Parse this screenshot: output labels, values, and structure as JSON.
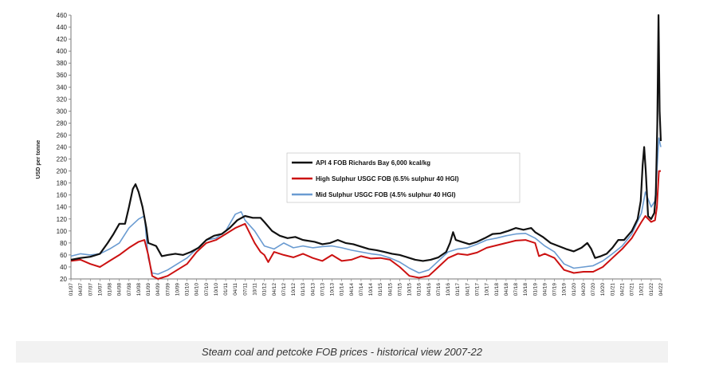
{
  "caption": "Steam coal and petcoke FOB prices - historical view 2007-22",
  "chart_data": {
    "type": "line",
    "title": "",
    "ylabel": "USD per tonne",
    "xlabel": "",
    "ylim": [
      20,
      460
    ],
    "yticks": [
      20,
      40,
      60,
      80,
      100,
      120,
      140,
      160,
      180,
      200,
      220,
      240,
      260,
      280,
      300,
      320,
      340,
      360,
      380,
      400,
      420,
      440,
      460
    ],
    "xlim": [
      2007.0,
      2022.25
    ],
    "grid": false,
    "legend_position": "center-right",
    "xtick_labels": [
      "01/07",
      "04/07",
      "07/07",
      "10/07",
      "01/08",
      "04/08",
      "07/08",
      "10/08",
      "01/09",
      "04/09",
      "07/09",
      "10/09",
      "01/10",
      "04/10",
      "07/10",
      "10/10",
      "01/11",
      "04/11",
      "07/11",
      "10/11",
      "01/12",
      "04/12",
      "07/12",
      "10/12",
      "01/13",
      "04/13",
      "07/13",
      "10/13",
      "01/14",
      "04/14",
      "07/14",
      "10/14",
      "01/15",
      "04/15",
      "07/15",
      "10/15",
      "01/16",
      "04/16",
      "07/16",
      "10/16",
      "01/17",
      "04/17",
      "07/17",
      "10/17",
      "01/18",
      "04/18",
      "07/18",
      "10/18",
      "01/19",
      "04/19",
      "07/19",
      "10/19",
      "01/20",
      "04/20",
      "07/20",
      "10/20",
      "01/21",
      "04/21",
      "07/21",
      "10/21",
      "01/22",
      "04/22"
    ],
    "series": [
      {
        "name": "API 4 FOB Richards Bay 6,000 kcal/kg",
        "color": "#111111",
        "points": [
          [
            2007.0,
            52
          ],
          [
            2007.25,
            55
          ],
          [
            2007.5,
            57
          ],
          [
            2007.75,
            62
          ],
          [
            2007.95,
            80
          ],
          [
            2008.1,
            95
          ],
          [
            2008.25,
            112
          ],
          [
            2008.4,
            112
          ],
          [
            2008.5,
            140
          ],
          [
            2008.6,
            170
          ],
          [
            2008.67,
            178
          ],
          [
            2008.75,
            165
          ],
          [
            2008.85,
            140
          ],
          [
            2008.95,
            105
          ],
          [
            2009.0,
            80
          ],
          [
            2009.2,
            75
          ],
          [
            2009.35,
            58
          ],
          [
            2009.5,
            60
          ],
          [
            2009.7,
            62
          ],
          [
            2009.9,
            60
          ],
          [
            2010.1,
            65
          ],
          [
            2010.3,
            72
          ],
          [
            2010.5,
            85
          ],
          [
            2010.7,
            92
          ],
          [
            2010.9,
            95
          ],
          [
            2011.1,
            105
          ],
          [
            2011.3,
            118
          ],
          [
            2011.5,
            125
          ],
          [
            2011.7,
            122
          ],
          [
            2011.9,
            122
          ],
          [
            2012.0,
            115
          ],
          [
            2012.2,
            100
          ],
          [
            2012.4,
            92
          ],
          [
            2012.6,
            88
          ],
          [
            2012.8,
            90
          ],
          [
            2013.0,
            85
          ],
          [
            2013.3,
            82
          ],
          [
            2013.5,
            78
          ],
          [
            2013.7,
            80
          ],
          [
            2013.9,
            85
          ],
          [
            2014.1,
            80
          ],
          [
            2014.3,
            78
          ],
          [
            2014.5,
            74
          ],
          [
            2014.7,
            70
          ],
          [
            2014.9,
            68
          ],
          [
            2015.1,
            65
          ],
          [
            2015.3,
            62
          ],
          [
            2015.5,
            60
          ],
          [
            2015.7,
            56
          ],
          [
            2015.9,
            52
          ],
          [
            2016.1,
            50
          ],
          [
            2016.3,
            52
          ],
          [
            2016.5,
            56
          ],
          [
            2016.7,
            65
          ],
          [
            2016.8,
            80
          ],
          [
            2016.88,
            98
          ],
          [
            2016.95,
            85
          ],
          [
            2017.1,
            82
          ],
          [
            2017.3,
            78
          ],
          [
            2017.5,
            82
          ],
          [
            2017.7,
            88
          ],
          [
            2017.9,
            95
          ],
          [
            2018.1,
            96
          ],
          [
            2018.3,
            100
          ],
          [
            2018.5,
            105
          ],
          [
            2018.7,
            102
          ],
          [
            2018.9,
            105
          ],
          [
            2019.0,
            98
          ],
          [
            2019.2,
            90
          ],
          [
            2019.4,
            80
          ],
          [
            2019.6,
            75
          ],
          [
            2019.8,
            70
          ],
          [
            2020.0,
            66
          ],
          [
            2020.2,
            72
          ],
          [
            2020.35,
            80
          ],
          [
            2020.45,
            70
          ],
          [
            2020.55,
            55
          ],
          [
            2020.7,
            58
          ],
          [
            2020.85,
            62
          ],
          [
            2021.0,
            72
          ],
          [
            2021.15,
            85
          ],
          [
            2021.3,
            85
          ],
          [
            2021.5,
            100
          ],
          [
            2021.65,
            120
          ],
          [
            2021.73,
            150
          ],
          [
            2021.78,
            210
          ],
          [
            2021.82,
            240
          ],
          [
            2021.86,
            200
          ],
          [
            2021.92,
            125
          ],
          [
            2022.0,
            120
          ],
          [
            2022.08,
            130
          ],
          [
            2022.12,
            160
          ],
          [
            2022.16,
            280
          ],
          [
            2022.19,
            460
          ],
          [
            2022.22,
            300
          ],
          [
            2022.25,
            250
          ]
        ]
      },
      {
        "name": "High Sulphur USGC FOB (6.5% sulphur 40 HGI)",
        "color": "#cc1111",
        "points": [
          [
            2007.0,
            50
          ],
          [
            2007.25,
            52
          ],
          [
            2007.5,
            45
          ],
          [
            2007.75,
            40
          ],
          [
            2008.0,
            50
          ],
          [
            2008.25,
            60
          ],
          [
            2008.5,
            72
          ],
          [
            2008.75,
            82
          ],
          [
            2008.9,
            85
          ],
          [
            2009.0,
            60
          ],
          [
            2009.1,
            25
          ],
          [
            2009.25,
            20
          ],
          [
            2009.5,
            25
          ],
          [
            2009.75,
            35
          ],
          [
            2010.0,
            45
          ],
          [
            2010.25,
            65
          ],
          [
            2010.5,
            80
          ],
          [
            2010.75,
            85
          ],
          [
            2011.0,
            95
          ],
          [
            2011.25,
            105
          ],
          [
            2011.5,
            112
          ],
          [
            2011.75,
            80
          ],
          [
            2011.9,
            65
          ],
          [
            2012.0,
            60
          ],
          [
            2012.1,
            48
          ],
          [
            2012.25,
            65
          ],
          [
            2012.5,
            60
          ],
          [
            2012.75,
            56
          ],
          [
            2013.0,
            62
          ],
          [
            2013.25,
            55
          ],
          [
            2013.5,
            50
          ],
          [
            2013.75,
            60
          ],
          [
            2014.0,
            50
          ],
          [
            2014.25,
            52
          ],
          [
            2014.5,
            58
          ],
          [
            2014.75,
            54
          ],
          [
            2015.0,
            55
          ],
          [
            2015.25,
            52
          ],
          [
            2015.5,
            40
          ],
          [
            2015.75,
            25
          ],
          [
            2016.0,
            22
          ],
          [
            2016.25,
            25
          ],
          [
            2016.5,
            40
          ],
          [
            2016.75,
            55
          ],
          [
            2017.0,
            62
          ],
          [
            2017.25,
            60
          ],
          [
            2017.5,
            64
          ],
          [
            2017.75,
            72
          ],
          [
            2018.0,
            76
          ],
          [
            2018.25,
            80
          ],
          [
            2018.5,
            84
          ],
          [
            2018.75,
            85
          ],
          [
            2019.0,
            80
          ],
          [
            2019.1,
            58
          ],
          [
            2019.25,
            62
          ],
          [
            2019.5,
            55
          ],
          [
            2019.75,
            35
          ],
          [
            2020.0,
            30
          ],
          [
            2020.25,
            32
          ],
          [
            2020.5,
            32
          ],
          [
            2020.75,
            40
          ],
          [
            2021.0,
            55
          ],
          [
            2021.25,
            70
          ],
          [
            2021.5,
            88
          ],
          [
            2021.75,
            115
          ],
          [
            2021.85,
            125
          ],
          [
            2022.0,
            115
          ],
          [
            2022.1,
            118
          ],
          [
            2022.15,
            140
          ],
          [
            2022.2,
            200
          ],
          [
            2022.25,
            200
          ]
        ]
      },
      {
        "name": "Mid Sulphur USGC FOB (4.5% sulphur 40 HGI)",
        "color": "#6a9bd1",
        "points": [
          [
            2007.0,
            58
          ],
          [
            2007.25,
            62
          ],
          [
            2007.5,
            60
          ],
          [
            2007.75,
            62
          ],
          [
            2008.0,
            70
          ],
          [
            2008.25,
            80
          ],
          [
            2008.5,
            105
          ],
          [
            2008.75,
            120
          ],
          [
            2008.9,
            125
          ],
          [
            2009.0,
            55
          ],
          [
            2009.1,
            30
          ],
          [
            2009.25,
            28
          ],
          [
            2009.5,
            35
          ],
          [
            2009.75,
            45
          ],
          [
            2010.0,
            55
          ],
          [
            2010.25,
            70
          ],
          [
            2010.5,
            85
          ],
          [
            2010.75,
            88
          ],
          [
            2011.0,
            100
          ],
          [
            2011.25,
            128
          ],
          [
            2011.4,
            132
          ],
          [
            2011.5,
            118
          ],
          [
            2011.75,
            100
          ],
          [
            2012.0,
            75
          ],
          [
            2012.25,
            70
          ],
          [
            2012.5,
            80
          ],
          [
            2012.75,
            72
          ],
          [
            2013.0,
            75
          ],
          [
            2013.25,
            72
          ],
          [
            2013.5,
            74
          ],
          [
            2013.75,
            75
          ],
          [
            2014.0,
            72
          ],
          [
            2014.25,
            68
          ],
          [
            2014.5,
            65
          ],
          [
            2014.75,
            62
          ],
          [
            2015.0,
            60
          ],
          [
            2015.25,
            55
          ],
          [
            2015.5,
            48
          ],
          [
            2015.75,
            38
          ],
          [
            2016.0,
            30
          ],
          [
            2016.25,
            35
          ],
          [
            2016.5,
            50
          ],
          [
            2016.75,
            65
          ],
          [
            2017.0,
            70
          ],
          [
            2017.25,
            72
          ],
          [
            2017.5,
            78
          ],
          [
            2017.75,
            85
          ],
          [
            2018.0,
            88
          ],
          [
            2018.25,
            92
          ],
          [
            2018.5,
            95
          ],
          [
            2018.75,
            96
          ],
          [
            2019.0,
            88
          ],
          [
            2019.25,
            75
          ],
          [
            2019.5,
            65
          ],
          [
            2019.75,
            45
          ],
          [
            2020.0,
            38
          ],
          [
            2020.25,
            40
          ],
          [
            2020.5,
            42
          ],
          [
            2020.75,
            50
          ],
          [
            2021.0,
            62
          ],
          [
            2021.25,
            75
          ],
          [
            2021.5,
            95
          ],
          [
            2021.75,
            130
          ],
          [
            2021.85,
            165
          ],
          [
            2022.0,
            140
          ],
          [
            2022.1,
            150
          ],
          [
            2022.15,
            200
          ],
          [
            2022.2,
            255
          ],
          [
            2022.25,
            240
          ]
        ]
      }
    ]
  }
}
